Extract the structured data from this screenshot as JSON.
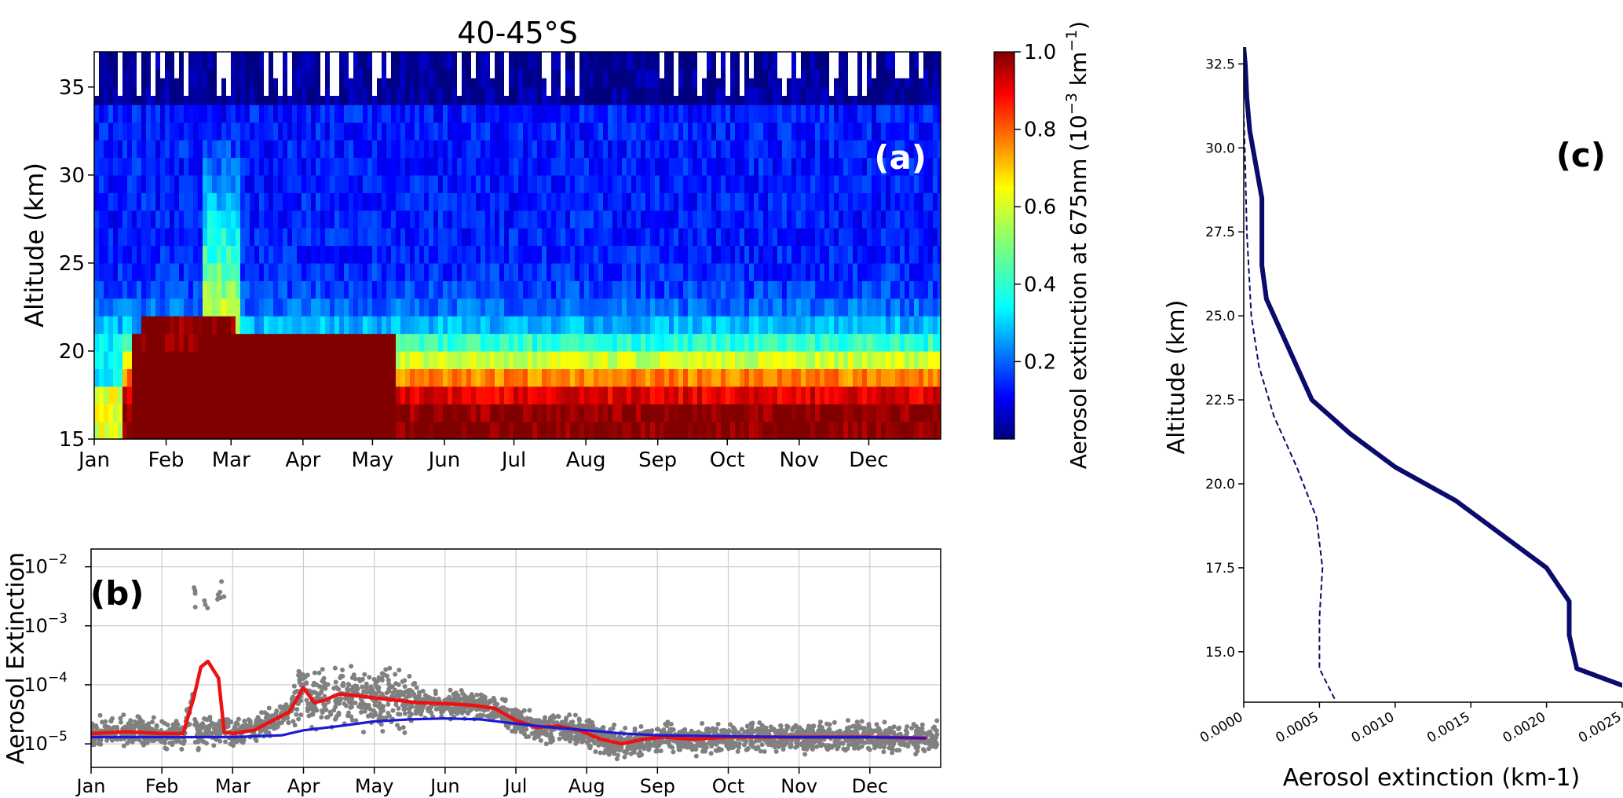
{
  "chart_data": [
    {
      "panel": "(a)",
      "type": "heatmap",
      "title": "40-45°S",
      "xlabel": "",
      "ylabel": "Altitude (km)",
      "x_ticks": [
        "Jan",
        "Feb",
        "Mar",
        "Apr",
        "May",
        "Jun",
        "Jul",
        "Aug",
        "Sep",
        "Oct",
        "Nov",
        "Dec"
      ],
      "y_ticks": [
        15,
        20,
        25,
        30,
        35
      ],
      "ylim": [
        15,
        37
      ],
      "colorbar": {
        "label_prefix": "Aerosol extinction at 675nm (10",
        "label_exp1": "−3",
        "label_mid": " km",
        "label_exp2": "−1",
        "label_suffix": ")",
        "ticks": [
          "0.2",
          "0.4",
          "0.6",
          "0.8",
          "1.0"
        ],
        "range": [
          0,
          1.0
        ],
        "colormap": "jet"
      }
    },
    {
      "panel": "(b)",
      "type": "scatter",
      "xlabel": "",
      "ylabel": "Aerosol Extinction",
      "x_ticks": [
        "Jan",
        "Feb",
        "Mar",
        "Apr",
        "May",
        "Jun",
        "Jul",
        "Aug",
        "Sep",
        "Oct",
        "Nov",
        "Dec"
      ],
      "y_ticks": [
        {
          "base": "10",
          "exp": "−5"
        },
        {
          "base": "10",
          "exp": "−4"
        },
        {
          "base": "10",
          "exp": "−3"
        },
        {
          "base": "10",
          "exp": "−2"
        }
      ],
      "yscale": "log",
      "ylim": [
        4e-06,
        0.02
      ],
      "grid": true,
      "series": [
        {
          "color": "#ee1111",
          "x_months": [
            0,
            0.5,
            1,
            1.3,
            1.45,
            1.55,
            1.65,
            1.8,
            1.88,
            2.0,
            2.3,
            2.6,
            2.8,
            3.0,
            3.15,
            3.3,
            3.5,
            3.8,
            4.0,
            4.3,
            4.6,
            5.0,
            5.4,
            5.7,
            6.0,
            6.3,
            6.6,
            6.9,
            7.2,
            7.5,
            7.8,
            8.1,
            8.5,
            9.0,
            10.0,
            11.0,
            11.8
          ],
          "values": [
            1.5e-05,
            1.6e-05,
            1.5e-05,
            1.5e-05,
            6e-05,
            0.0002,
            0.00025,
            0.00013,
            1.6e-05,
            1.5e-05,
            1.7e-05,
            2.6e-05,
            3.5e-05,
            9e-05,
            5e-05,
            5.5e-05,
            7e-05,
            6.5e-05,
            6e-05,
            5.5e-05,
            5e-05,
            4.8e-05,
            4.5e-05,
            4e-05,
            2.5e-05,
            1.9e-05,
            2e-05,
            1.7e-05,
            1.2e-05,
            1e-05,
            1.2e-05,
            1.3e-05,
            1.2e-05,
            1.3e-05,
            1.3e-05,
            1.3e-05,
            1.25e-05
          ]
        },
        {
          "color": "#1a1ad6",
          "x_months": [
            0,
            1,
            2,
            2.7,
            3.0,
            3.5,
            4.0,
            4.5,
            5.0,
            5.5,
            6.0,
            6.5,
            7.0,
            7.5,
            8.0,
            9.0,
            10.0,
            11.0,
            11.8
          ],
          "values": [
            1.3e-05,
            1.3e-05,
            1.3e-05,
            1.4e-05,
            1.7e-05,
            2e-05,
            2.4e-05,
            2.6e-05,
            2.7e-05,
            2.6e-05,
            2.2e-05,
            1.9e-05,
            1.7e-05,
            1.5e-05,
            1.4e-05,
            1.35e-05,
            1.3e-05,
            1.3e-05,
            1.25e-05
          ]
        }
      ]
    },
    {
      "panel": "(c)",
      "type": "line",
      "xlabel": "Aerosol extinction (km-1)",
      "ylabel": "Altitude (km)",
      "xlim": [
        0,
        0.0025
      ],
      "ylim": [
        13.5,
        33
      ],
      "x_ticks": [
        "0.0000",
        "0.0005",
        "0.0010",
        "0.0015",
        "0.0020",
        "0.0025"
      ],
      "y_ticks": [
        "15.0",
        "17.5",
        "20.0",
        "22.5",
        "25.0",
        "27.5",
        "30.0",
        "32.5"
      ],
      "series": [
        {
          "style": "solid",
          "color": "#0b0b6e",
          "points": [
            [
              0.0027,
              13.8
            ],
            [
              0.0025,
              14.0
            ],
            [
              0.0022,
              14.5
            ],
            [
              0.00215,
              15.5
            ],
            [
              0.00215,
              16.5
            ],
            [
              0.002,
              17.5
            ],
            [
              0.0017,
              18.5
            ],
            [
              0.0014,
              19.5
            ],
            [
              0.001,
              20.5
            ],
            [
              0.0007,
              21.5
            ],
            [
              0.00045,
              22.5
            ],
            [
              0.00035,
              23.5
            ],
            [
              0.00025,
              24.5
            ],
            [
              0.00015,
              25.5
            ],
            [
              0.00012,
              26.5
            ],
            [
              0.00012,
              28.5
            ],
            [
              8e-05,
              29.5
            ],
            [
              4e-05,
              30.5
            ],
            [
              2e-05,
              31.5
            ],
            [
              1e-05,
              32.5
            ],
            [
              0.0,
              33.0
            ]
          ]
        },
        {
          "style": "dashed",
          "color": "#0b0b6e",
          "points": [
            [
              0.0006,
              13.6
            ],
            [
              0.0005,
              14.5
            ],
            [
              0.0005,
              16.0
            ],
            [
              0.00052,
              17.5
            ],
            [
              0.00048,
              19.0
            ],
            [
              0.00035,
              20.5
            ],
            [
              0.0002,
              22.0
            ],
            [
              0.0001,
              23.5
            ],
            [
              5e-05,
              25.0
            ],
            [
              2e-05,
              27.5
            ],
            [
              1e-05,
              29.5
            ],
            [
              0.0,
              31.0
            ]
          ]
        }
      ]
    }
  ]
}
